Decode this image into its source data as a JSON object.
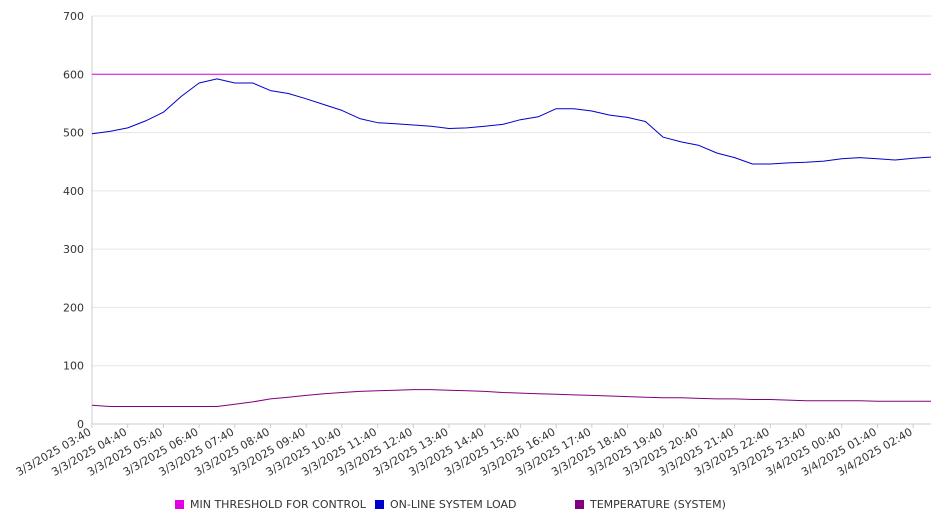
{
  "chart_data": {
    "type": "line",
    "title": "",
    "xlabel": "",
    "ylabel": "",
    "ylim": [
      0,
      700
    ],
    "yticks": [
      0,
      100,
      200,
      300,
      400,
      500,
      600,
      700
    ],
    "grid": "horizontal",
    "legend_position": "bottom",
    "x_tick_labels": [
      "3/3/2025 03:40",
      "3/3/2025 04:40",
      "3/3/2025 05:40",
      "3/3/2025 06:40",
      "3/3/2025 07:40",
      "3/3/2025 08:40",
      "3/3/2025 09:40",
      "3/3/2025 10:40",
      "3/3/2025 11:40",
      "3/3/2025 12:40",
      "3/3/2025 13:40",
      "3/3/2025 14:40",
      "3/3/2025 15:40",
      "3/3/2025 16:40",
      "3/3/2025 17:40",
      "3/3/2025 18:40",
      "3/3/2025 19:40",
      "3/3/2025 20:40",
      "3/3/2025 21:40",
      "3/3/2025 22:40",
      "3/3/2025 23:40",
      "3/4/2025 00:40",
      "3/4/2025 01:40",
      "3/4/2025 02:40"
    ],
    "x_points": [
      "3/3/2025 03:40",
      "3/3/2025 04:10",
      "3/3/2025 04:40",
      "3/3/2025 05:10",
      "3/3/2025 05:40",
      "3/3/2025 06:10",
      "3/3/2025 06:40",
      "3/3/2025 07:10",
      "3/3/2025 07:40",
      "3/3/2025 08:10",
      "3/3/2025 08:40",
      "3/3/2025 09:10",
      "3/3/2025 09:40",
      "3/3/2025 10:10",
      "3/3/2025 10:40",
      "3/3/2025 11:10",
      "3/3/2025 11:40",
      "3/3/2025 12:10",
      "3/3/2025 12:40",
      "3/3/2025 13:10",
      "3/3/2025 13:40",
      "3/3/2025 14:10",
      "3/3/2025 14:40",
      "3/3/2025 15:10",
      "3/3/2025 15:40",
      "3/3/2025 16:10",
      "3/3/2025 16:40",
      "3/3/2025 17:10",
      "3/3/2025 17:40",
      "3/3/2025 18:10",
      "3/3/2025 18:40",
      "3/3/2025 19:10",
      "3/3/2025 19:40",
      "3/3/2025 20:10",
      "3/3/2025 20:40",
      "3/3/2025 21:10",
      "3/3/2025 21:40",
      "3/3/2025 22:10",
      "3/3/2025 22:40",
      "3/3/2025 23:10",
      "3/3/2025 23:40",
      "3/4/2025 00:10",
      "3/4/2025 00:40",
      "3/4/2025 01:10",
      "3/4/2025 01:40",
      "3/4/2025 02:10",
      "3/4/2025 02:40",
      "3/4/2025 03:10"
    ],
    "series": [
      {
        "name": "MIN THRESHOLD FOR CONTROL",
        "color": "#e000e0",
        "values": [
          600,
          600,
          600,
          600,
          600,
          600,
          600,
          600,
          600,
          600,
          600,
          600,
          600,
          600,
          600,
          600,
          600,
          600,
          600,
          600,
          600,
          600,
          600,
          600,
          600,
          600,
          600,
          600,
          600,
          600,
          600,
          600,
          600,
          600,
          600,
          600,
          600,
          600,
          600,
          600,
          600,
          600,
          600,
          600,
          600,
          600,
          600,
          600
        ]
      },
      {
        "name": "ON-LINE SYSTEM LOAD",
        "color": "#0000cc",
        "values": [
          498,
          502,
          508,
          520,
          535,
          562,
          585,
          592,
          585,
          585,
          572,
          567,
          558,
          548,
          538,
          524,
          517,
          515,
          513,
          511,
          507,
          508,
          511,
          514,
          522,
          527,
          541,
          541,
          537,
          530,
          526,
          519,
          492,
          484,
          478,
          465,
          457,
          446,
          446,
          448,
          449,
          451,
          455,
          457,
          455,
          453,
          456,
          458
        ]
      },
      {
        "name": "TEMPERATURE (SYSTEM)",
        "color": "#800080",
        "values": [
          32,
          30,
          30,
          30,
          30,
          30,
          30,
          30,
          34,
          38,
          43,
          46,
          49,
          52,
          54,
          56,
          57,
          58,
          59,
          59,
          58,
          57,
          56,
          54,
          53,
          52,
          51,
          50,
          49,
          48,
          47,
          46,
          45,
          45,
          44,
          43,
          43,
          42,
          42,
          41,
          40,
          40,
          40,
          40,
          39,
          39,
          39,
          39
        ]
      }
    ]
  }
}
